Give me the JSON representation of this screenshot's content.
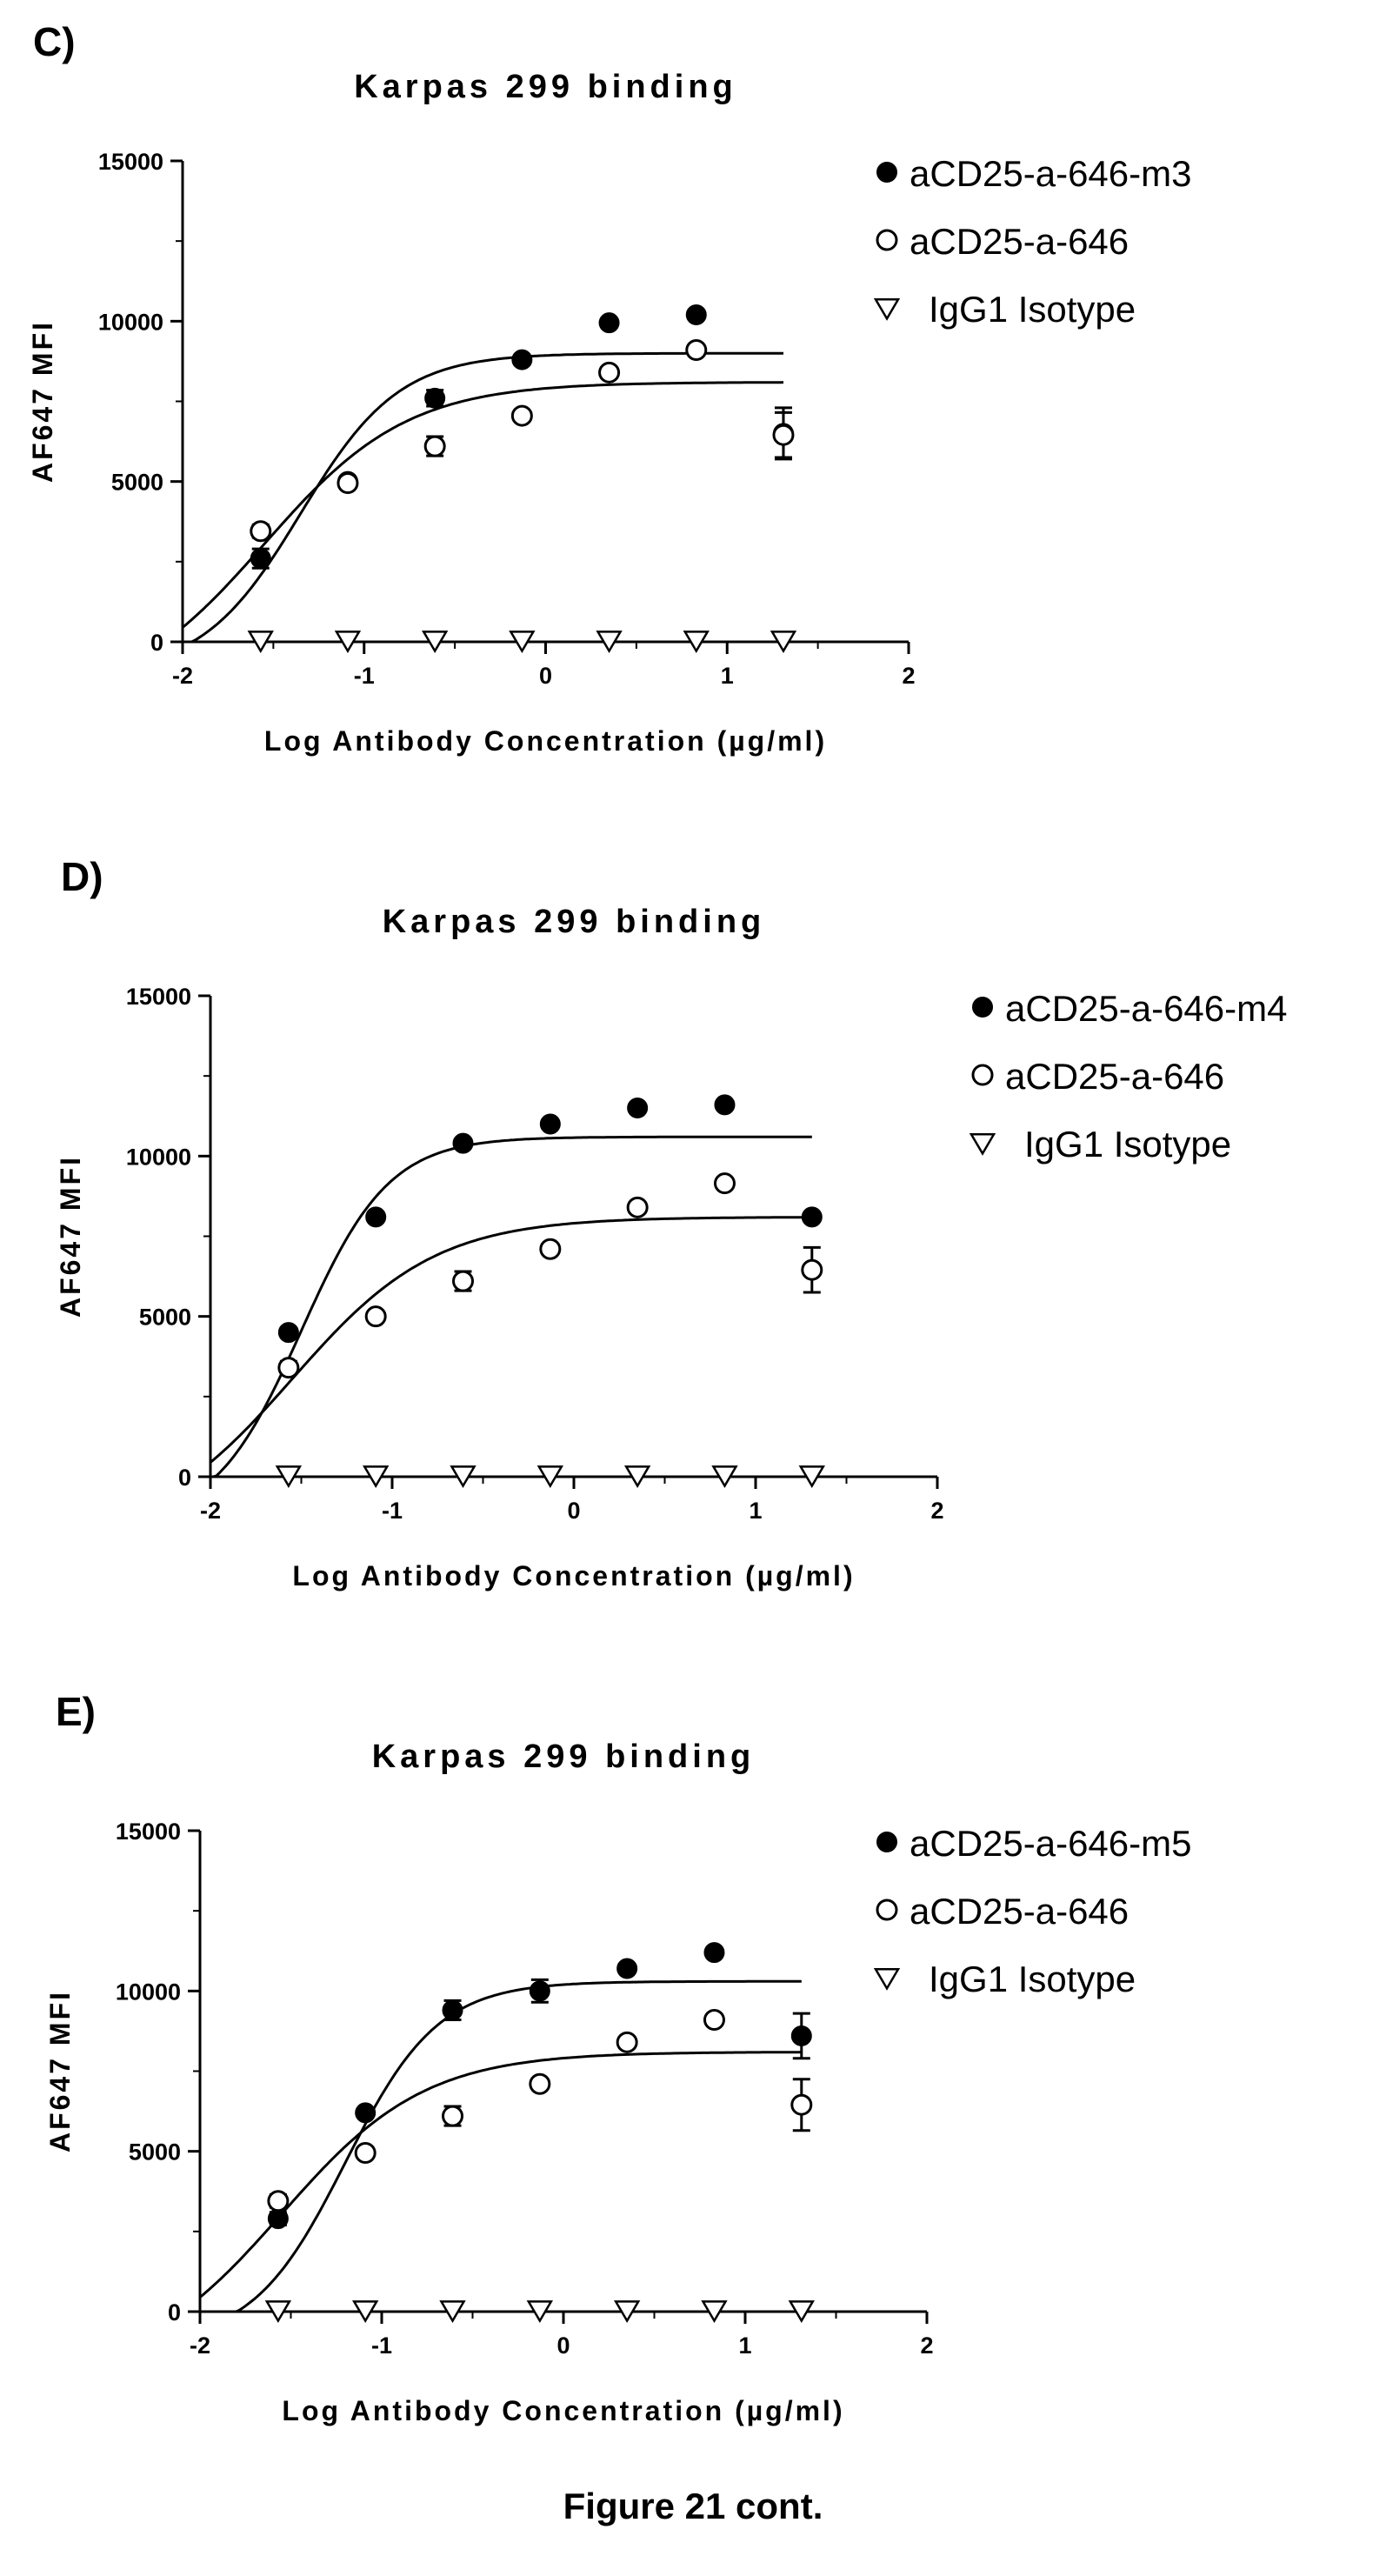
{
  "caption": "Figure 21 cont.",
  "chart_data": [
    {
      "panel_label": "C)",
      "type": "scatter",
      "title": "Karpas 299 binding",
      "xlabel": "Log Antibody Concentration (µg/ml)",
      "ylabel": "AF647 MFI",
      "xlim": [
        -2,
        2
      ],
      "ylim": [
        0,
        15000
      ],
      "xticks": [
        -2,
        -1,
        0,
        1,
        2
      ],
      "yticks": [
        0,
        5000,
        10000,
        15000
      ],
      "legend_position": "top-right",
      "series": [
        {
          "name": "aCD25-a-646-m3",
          "marker": "filled-circle",
          "x": [
            -1.57,
            -1.09,
            -0.61,
            -0.13,
            0.35,
            0.83,
            1.31
          ],
          "y": [
            2600,
            5000,
            7600,
            8800,
            9950,
            10200,
            6500
          ],
          "err": [
            300,
            150,
            250,
            0,
            0,
            0,
            800
          ],
          "fit": {
            "bottom": -1000,
            "top": 9000,
            "logec50": -1.35,
            "hill": 1.6
          }
        },
        {
          "name": "aCD25-a-646",
          "marker": "open-circle",
          "x": [
            -1.57,
            -1.09,
            -0.61,
            -0.13,
            0.35,
            0.83,
            1.31
          ],
          "y": [
            3450,
            4950,
            6100,
            7050,
            8400,
            9100,
            6450
          ],
          "err": [
            200,
            0,
            300,
            0,
            0,
            0,
            700
          ],
          "fit": {
            "bottom": -2000,
            "top": 8100,
            "logec50": -1.55,
            "hill": 1.1
          }
        },
        {
          "name": "IgG1 Isotype",
          "marker": "open-triangle-down",
          "x": [
            -1.57,
            -1.09,
            -0.61,
            -0.13,
            0.35,
            0.83,
            1.31
          ],
          "y": [
            50,
            50,
            50,
            50,
            50,
            50,
            50
          ]
        }
      ]
    },
    {
      "panel_label": "D)",
      "type": "scatter",
      "title": "Karpas 299 binding",
      "xlabel": "Log Antibody Concentration (µg/ml)",
      "ylabel": "AF647 MFI",
      "xlim": [
        -2,
        2
      ],
      "ylim": [
        0,
        15000
      ],
      "xticks": [
        -2,
        -1,
        0,
        1,
        2
      ],
      "yticks": [
        0,
        5000,
        10000,
        15000
      ],
      "legend_position": "top-right",
      "series": [
        {
          "name": "aCD25-a-646-m4",
          "marker": "filled-circle",
          "x": [
            -1.57,
            -1.09,
            -0.61,
            -0.13,
            0.35,
            0.83,
            1.31
          ],
          "y": [
            4500,
            8100,
            10400,
            11000,
            11500,
            11600,
            8100
          ],
          "err": [
            0,
            0,
            0,
            0,
            0,
            0,
            0
          ],
          "fit": {
            "bottom": -1500,
            "top": 10600,
            "logec50": -1.5,
            "hill": 1.8
          }
        },
        {
          "name": "aCD25-a-646",
          "marker": "open-circle",
          "x": [
            -1.57,
            -1.09,
            -0.61,
            -0.13,
            0.35,
            0.83,
            1.31
          ],
          "y": [
            3400,
            5000,
            6100,
            7100,
            8400,
            9150,
            6450
          ],
          "err": [
            200,
            0,
            300,
            0,
            0,
            0,
            700
          ],
          "fit": {
            "bottom": -2000,
            "top": 8100,
            "logec50": -1.55,
            "hill": 1.1
          }
        },
        {
          "name": "IgG1 Isotype",
          "marker": "open-triangle-down",
          "x": [
            -1.57,
            -1.09,
            -0.61,
            -0.13,
            0.35,
            0.83,
            1.31
          ],
          "y": [
            50,
            50,
            50,
            50,
            50,
            50,
            50
          ]
        }
      ]
    },
    {
      "panel_label": "E)",
      "type": "scatter",
      "title": "Karpas 299 binding",
      "xlabel": "Log Antibody Concentration (µg/ml)",
      "ylabel": "AF647 MFI",
      "xlim": [
        -2,
        2
      ],
      "ylim": [
        0,
        15000
      ],
      "xticks": [
        -2,
        -1,
        0,
        1,
        2
      ],
      "yticks": [
        0,
        5000,
        10000,
        15000
      ],
      "legend_position": "top-right",
      "series": [
        {
          "name": "aCD25-a-646-m5",
          "marker": "filled-circle",
          "x": [
            -1.57,
            -1.09,
            -0.61,
            -0.13,
            0.35,
            0.83,
            1.31
          ],
          "y": [
            2900,
            6200,
            9400,
            10000,
            10700,
            11200,
            8600
          ],
          "err": [
            200,
            0,
            300,
            350,
            0,
            0,
            700
          ],
          "fit": {
            "bottom": -1000,
            "top": 10300,
            "logec50": -1.2,
            "hill": 1.7
          }
        },
        {
          "name": "aCD25-a-646",
          "marker": "open-circle",
          "x": [
            -1.57,
            -1.09,
            -0.61,
            -0.13,
            0.35,
            0.83,
            1.31
          ],
          "y": [
            3450,
            4950,
            6100,
            7100,
            8400,
            9100,
            6450
          ],
          "err": [
            200,
            0,
            300,
            0,
            0,
            0,
            800
          ],
          "fit": {
            "bottom": -2000,
            "top": 8100,
            "logec50": -1.55,
            "hill": 1.1
          }
        },
        {
          "name": "IgG1 Isotype",
          "marker": "open-triangle-down",
          "x": [
            -1.57,
            -1.09,
            -0.61,
            -0.13,
            0.35,
            0.83,
            1.31
          ],
          "y": [
            50,
            50,
            50,
            50,
            50,
            50,
            50
          ]
        }
      ]
    }
  ]
}
